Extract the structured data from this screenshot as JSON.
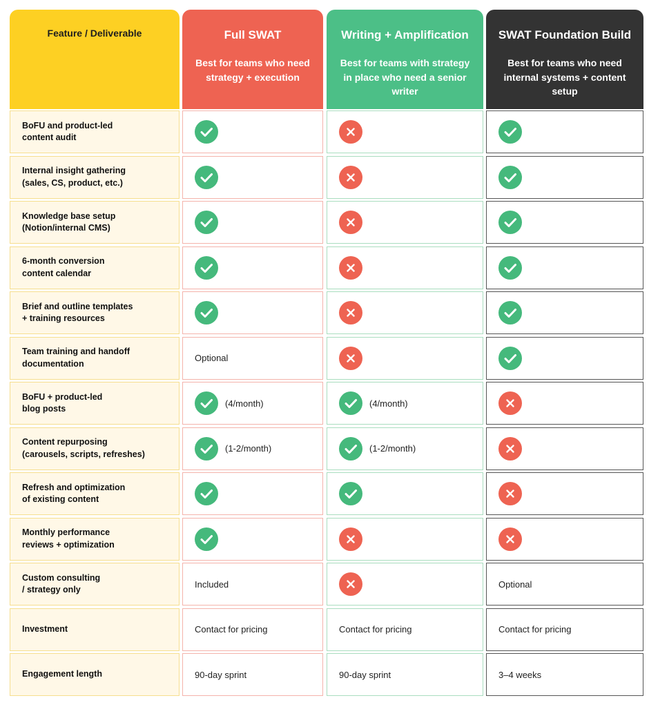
{
  "header": {
    "feature_label": "Feature / Deliverable",
    "plans": [
      {
        "title": "Full SWAT",
        "subtitle": "Best for teams who need strategy + execution"
      },
      {
        "title": "Writing + Amplification",
        "subtitle": "Best for teams with strategy in place who need a senior writer"
      },
      {
        "title": "SWAT Foundation Build",
        "subtitle": "Best for teams who need internal systems + content setup"
      }
    ]
  },
  "rows": [
    {
      "feature": [
        "BoFU and product-led",
        "content audit"
      ],
      "cells": [
        {
          "status": "check"
        },
        {
          "status": "cross"
        },
        {
          "status": "check"
        }
      ]
    },
    {
      "feature": [
        "Internal insight gathering",
        "(sales, CS, product, etc.)"
      ],
      "cells": [
        {
          "status": "check"
        },
        {
          "status": "cross"
        },
        {
          "status": "check"
        }
      ]
    },
    {
      "feature": [
        "Knowledge base setup",
        "(Notion/internal CMS)"
      ],
      "cells": [
        {
          "status": "check"
        },
        {
          "status": "cross"
        },
        {
          "status": "check"
        }
      ]
    },
    {
      "feature": [
        "6-month conversion",
        "content calendar"
      ],
      "cells": [
        {
          "status": "check"
        },
        {
          "status": "cross"
        },
        {
          "status": "check"
        }
      ]
    },
    {
      "feature": [
        "Brief and outline templates",
        "+ training resources"
      ],
      "cells": [
        {
          "status": "check"
        },
        {
          "status": "cross"
        },
        {
          "status": "check"
        }
      ]
    },
    {
      "feature": [
        "Team training and handoff",
        "documentation"
      ],
      "cells": [
        {
          "text": "Optional"
        },
        {
          "status": "cross"
        },
        {
          "status": "check"
        }
      ]
    },
    {
      "feature": [
        "BoFU + product-led",
        "blog posts"
      ],
      "cells": [
        {
          "status": "check",
          "note": "(4/month)"
        },
        {
          "status": "check",
          "note": "(4/month)"
        },
        {
          "status": "cross"
        }
      ]
    },
    {
      "feature": [
        "Content repurposing",
        "(carousels, scripts, refreshes)"
      ],
      "cells": [
        {
          "status": "check",
          "note": "(1-2/month)"
        },
        {
          "status": "check",
          "note": "(1-2/month)"
        },
        {
          "status": "cross"
        }
      ]
    },
    {
      "feature": [
        "Refresh and optimization",
        "of existing content"
      ],
      "cells": [
        {
          "status": "check"
        },
        {
          "status": "check"
        },
        {
          "status": "cross"
        }
      ]
    },
    {
      "feature": [
        "Monthly performance",
        "reviews + optimization"
      ],
      "cells": [
        {
          "status": "check"
        },
        {
          "status": "cross"
        },
        {
          "status": "cross"
        }
      ]
    },
    {
      "feature": [
        "Custom consulting",
        "/ strategy only"
      ],
      "cells": [
        {
          "text": "Included"
        },
        {
          "status": "cross"
        },
        {
          "text": "Optional"
        }
      ]
    },
    {
      "feature": [
        "Investment"
      ],
      "cells": [
        {
          "text": "Contact for pricing"
        },
        {
          "text": "Contact for pricing"
        },
        {
          "text": "Contact for pricing"
        }
      ]
    },
    {
      "feature": [
        "Engagement length"
      ],
      "cells": [
        {
          "text": "90-day sprint"
        },
        {
          "text": "90-day sprint"
        },
        {
          "text": "3–4 weeks"
        }
      ]
    }
  ]
}
